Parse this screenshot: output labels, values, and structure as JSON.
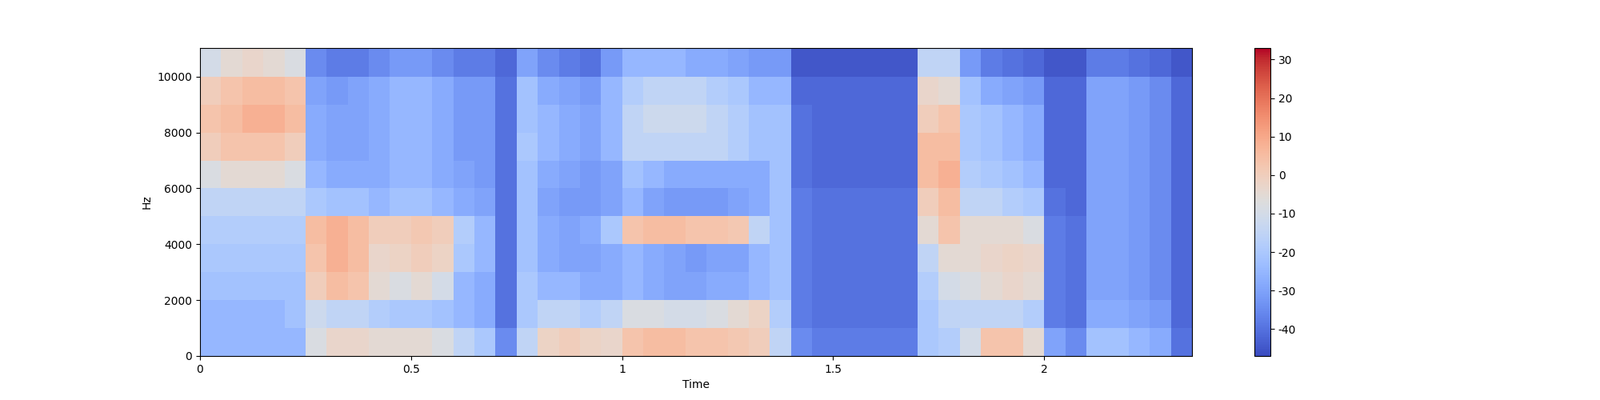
{
  "chart_data": {
    "type": "heatmap",
    "x_label": "Time",
    "y_label": "Hz",
    "x": [
      0,
      0.05,
      0.1,
      0.15,
      0.2,
      0.25,
      0.3,
      0.35,
      0.4,
      0.45,
      0.5,
      0.55,
      0.6,
      0.65,
      0.7,
      0.75,
      0.8,
      0.85,
      0.9,
      0.95,
      1.0,
      1.05,
      1.1,
      1.15,
      1.2,
      1.25,
      1.3,
      1.35,
      1.4,
      1.45,
      1.5,
      1.55,
      1.6,
      1.65,
      1.7,
      1.75,
      1.8,
      1.85,
      1.9,
      1.95,
      2.0,
      2.05,
      2.1,
      2.15,
      2.2,
      2.25,
      2.3,
      2.35
    ],
    "y": [
      0,
      1000,
      2000,
      3000,
      4000,
      5000,
      6000,
      7000,
      8000,
      9000,
      10000,
      11025
    ],
    "cells": [
      [
        -25,
        -25,
        -25,
        -25,
        -25,
        -8,
        -3,
        -3,
        -5,
        -5,
        -5,
        -8,
        -15,
        -20,
        -35,
        -15,
        -2,
        0,
        -2,
        -3,
        3,
        5,
        5,
        3,
        3,
        2,
        0,
        -15,
        -35,
        -38,
        -38,
        -38,
        -38,
        -38,
        -20,
        -18,
        -10,
        3,
        3,
        -5,
        -30,
        -35,
        -22,
        -22,
        -25,
        -28,
        -40
      ],
      [
        -25,
        -25,
        -25,
        -25,
        -22,
        -12,
        -15,
        -15,
        -18,
        -20,
        -20,
        -22,
        -25,
        -28,
        -40,
        -20,
        -15,
        -15,
        -18,
        -15,
        -8,
        -8,
        -10,
        -10,
        -8,
        -5,
        -2,
        -18,
        -38,
        -40,
        -40,
        -40,
        -40,
        -40,
        -20,
        -15,
        -15,
        -15,
        -15,
        -18,
        -38,
        -40,
        -28,
        -28,
        -30,
        -32,
        -42
      ],
      [
        -22,
        -22,
        -22,
        -22,
        -22,
        0,
        5,
        3,
        -5,
        -8,
        -5,
        -10,
        -25,
        -28,
        -40,
        -20,
        -25,
        -25,
        -28,
        -28,
        -25,
        -28,
        -30,
        -30,
        -28,
        -28,
        -25,
        -22,
        -38,
        -40,
        -40,
        -40,
        -40,
        -40,
        -18,
        -10,
        -8,
        -5,
        -3,
        -5,
        -38,
        -40,
        -30,
        -30,
        -32,
        -35,
        -42
      ],
      [
        -20,
        -20,
        -20,
        -20,
        -20,
        3,
        8,
        5,
        -3,
        -2,
        0,
        -2,
        -20,
        -25,
        -40,
        -22,
        -28,
        -30,
        -30,
        -28,
        -25,
        -28,
        -30,
        -32,
        -30,
        -30,
        -25,
        -22,
        -38,
        -40,
        -40,
        -40,
        -40,
        -40,
        -15,
        -5,
        -5,
        -3,
        -2,
        -3,
        -38,
        -40,
        -30,
        -30,
        -32,
        -35,
        -42
      ],
      [
        -18,
        -18,
        -18,
        -18,
        -18,
        5,
        8,
        5,
        0,
        0,
        2,
        0,
        -18,
        -25,
        -40,
        -22,
        -28,
        -30,
        -28,
        -20,
        3,
        5,
        5,
        3,
        3,
        2,
        -15,
        -22,
        -38,
        -40,
        -40,
        -40,
        -40,
        -40,
        -5,
        3,
        -5,
        -5,
        -5,
        -8,
        -38,
        -40,
        -30,
        -30,
        -32,
        -35,
        -42
      ],
      [
        -15,
        -15,
        -15,
        -15,
        -15,
        -20,
        -22,
        -22,
        -25,
        -22,
        -22,
        -25,
        -28,
        -30,
        -40,
        -22,
        -30,
        -32,
        -32,
        -30,
        -25,
        -30,
        -32,
        -32,
        -32,
        -30,
        -28,
        -22,
        -38,
        -40,
        -40,
        -40,
        -40,
        -40,
        0,
        5,
        -15,
        -15,
        -18,
        -20,
        -40,
        -42,
        -30,
        -30,
        -32,
        -35,
        -42
      ],
      [
        -8,
        -5,
        -5,
        -5,
        -8,
        -25,
        -28,
        -28,
        -28,
        -25,
        -25,
        -28,
        -30,
        -32,
        -40,
        -22,
        -28,
        -30,
        -32,
        -30,
        -22,
        -25,
        -28,
        -28,
        -28,
        -28,
        -28,
        -22,
        -40,
        -42,
        -42,
        -42,
        -42,
        -42,
        5,
        8,
        -18,
        -20,
        -22,
        -25,
        -42,
        -42,
        -30,
        -30,
        -32,
        -35,
        -42
      ],
      [
        0,
        3,
        3,
        3,
        0,
        -28,
        -30,
        -30,
        -28,
        -25,
        -25,
        -28,
        -32,
        -32,
        -40,
        -20,
        -25,
        -28,
        -30,
        -25,
        -15,
        -15,
        -15,
        -15,
        -15,
        -18,
        -22,
        -22,
        -40,
        -42,
        -42,
        -42,
        -42,
        -42,
        5,
        5,
        -20,
        -22,
        -25,
        -28,
        -42,
        -42,
        -30,
        -30,
        -32,
        -35,
        -42
      ],
      [
        3,
        5,
        8,
        8,
        5,
        -28,
        -30,
        -30,
        -28,
        -25,
        -25,
        -28,
        -32,
        -32,
        -40,
        -22,
        -25,
        -28,
        -30,
        -25,
        -15,
        -12,
        -12,
        -12,
        -15,
        -18,
        -22,
        -22,
        -40,
        -42,
        -42,
        -42,
        -42,
        -42,
        0,
        3,
        -20,
        -22,
        -25,
        -28,
        -42,
        -42,
        -30,
        -30,
        -32,
        -35,
        -42
      ],
      [
        0,
        3,
        5,
        5,
        3,
        -30,
        -32,
        -30,
        -28,
        -25,
        -25,
        -28,
        -32,
        -32,
        -40,
        -22,
        -28,
        -30,
        -32,
        -25,
        -18,
        -15,
        -15,
        -15,
        -18,
        -20,
        -25,
        -25,
        -42,
        -42,
        -42,
        -42,
        -42,
        -42,
        -3,
        -5,
        -22,
        -28,
        -30,
        -32,
        -42,
        -42,
        -30,
        -30,
        -32,
        -35,
        -42
      ],
      [
        -10,
        -5,
        -3,
        -5,
        -8,
        -35,
        -38,
        -38,
        -35,
        -32,
        -32,
        -35,
        -38,
        -38,
        -42,
        -30,
        -35,
        -38,
        -40,
        -32,
        -25,
        -25,
        -25,
        -28,
        -28,
        -30,
        -32,
        -32,
        -45,
        -45,
        -45,
        -45,
        -45,
        -45,
        -15,
        -15,
        -32,
        -38,
        -40,
        -42,
        -45,
        -45,
        -38,
        -38,
        -40,
        -42,
        -45
      ]
    ],
    "xlim": [
      0,
      2.35
    ],
    "xticks": [
      0,
      0.5,
      1,
      1.5,
      2
    ],
    "ylim": [
      0,
      11025
    ],
    "yticks": [
      0,
      2000,
      4000,
      6000,
      8000,
      10000
    ],
    "colorbar_range": [
      -47,
      33
    ],
    "colorbar_ticks": [
      -40,
      -30,
      -20,
      -10,
      0,
      10,
      20,
      30
    ]
  }
}
